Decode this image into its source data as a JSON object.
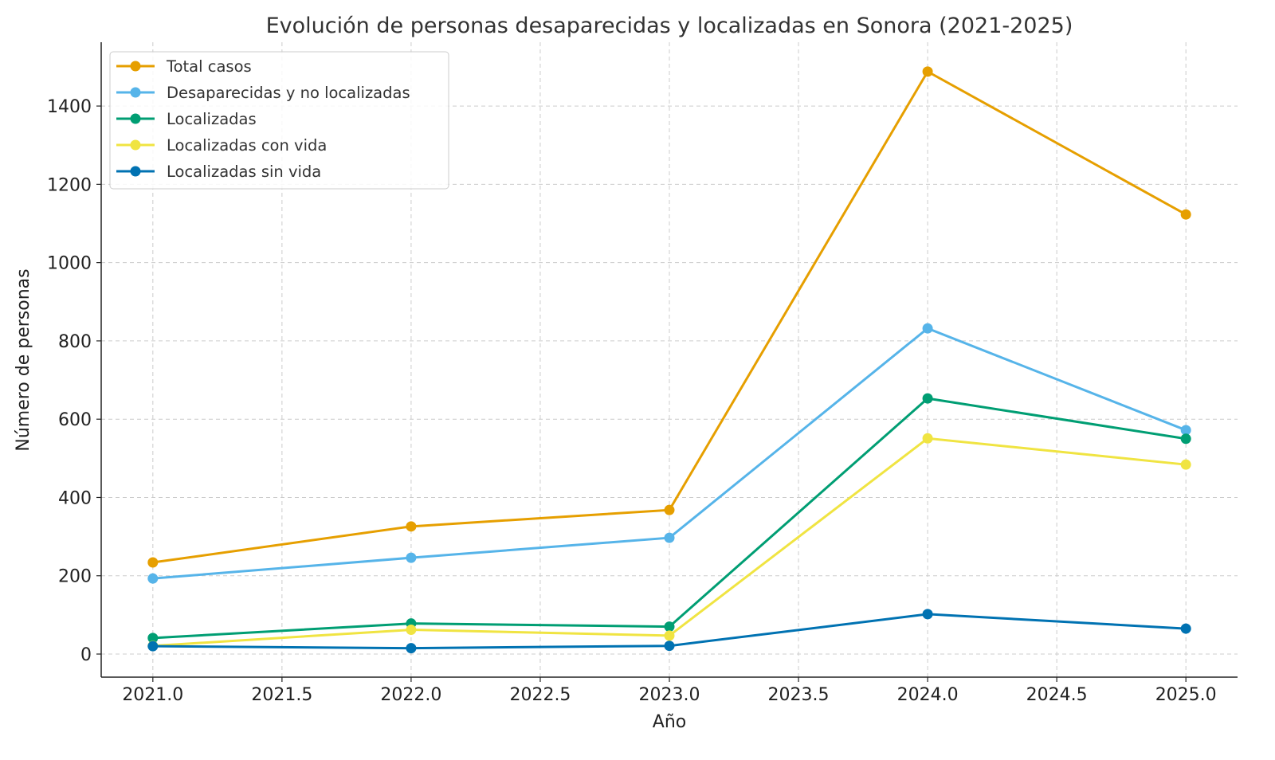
{
  "chart_data": {
    "type": "line",
    "title": "Evolución de personas desaparecidas y localizadas en Sonora (2021-2025)",
    "xlabel": "Año",
    "ylabel": "Número de personas",
    "x": [
      2021,
      2022,
      2023,
      2024,
      2025
    ],
    "xlim": [
      2020.8,
      2025.2
    ],
    "ylim": [
      -59,
      1563
    ],
    "xticks": [
      "2021.0",
      "2021.5",
      "2022.0",
      "2022.5",
      "2023.0",
      "2023.5",
      "2024.0",
      "2024.5",
      "2025.0"
    ],
    "xtick_values": [
      2021,
      2021.5,
      2022,
      2022.5,
      2023,
      2023.5,
      2024,
      2024.5,
      2025
    ],
    "yticks": [
      "0",
      "200",
      "400",
      "600",
      "800",
      "1000",
      "1200",
      "1400"
    ],
    "ytick_values": [
      0,
      200,
      400,
      600,
      800,
      1000,
      1200,
      1400
    ],
    "grid": true,
    "legend_position": "top-left",
    "series": [
      {
        "name": "Total casos",
        "color": "#E69F00",
        "values": [
          234,
          326,
          368,
          1488,
          1123
        ]
      },
      {
        "name": "Desaparecidas y no localizadas",
        "color": "#56B4E9",
        "values": [
          193,
          246,
          297,
          832,
          572
        ]
      },
      {
        "name": "Localizadas",
        "color": "#009E73",
        "values": [
          41,
          78,
          70,
          653,
          550
        ]
      },
      {
        "name": "Localizadas con vida",
        "color": "#F0E442",
        "values": [
          21,
          62,
          47,
          551,
          484
        ]
      },
      {
        "name": "Localizadas sin vida",
        "color": "#0072B2",
        "values": [
          20,
          15,
          21,
          102,
          65
        ]
      }
    ]
  }
}
